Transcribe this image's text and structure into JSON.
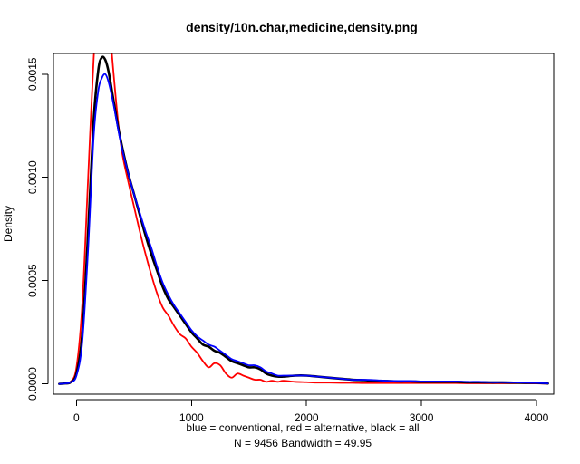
{
  "chart_data": {
    "type": "line",
    "title": "density/10n.char,medicine,density.png",
    "xlabel": "blue = conventional, red = alternative, black = all",
    "ylabel": "Density",
    "sub": "N = 9456   Bandwidth = 49.95",
    "xlim": [
      -200,
      4150
    ],
    "ylim": [
      -5e-05,
      0.0016
    ],
    "x_ticks": [
      0,
      1000,
      2000,
      3000,
      4000
    ],
    "x_tick_labels": [
      "0",
      "1000",
      "2000",
      "3000",
      "4000"
    ],
    "y_ticks": [
      0.0,
      0.0005,
      0.001,
      0.0015
    ],
    "y_tick_labels": [
      "0.0000",
      "0.0005",
      "0.0010",
      "0.0015"
    ],
    "grid": false,
    "legend": "none",
    "series": [
      {
        "color": "#ff0000",
        "x": [
          -150,
          -100,
          -50,
          0,
          50,
          100,
          150,
          190,
          220,
          250,
          280,
          320,
          360,
          400,
          450,
          500,
          550,
          600,
          650,
          700,
          750,
          800,
          850,
          900,
          950,
          1000,
          1050,
          1100,
          1150,
          1200,
          1250,
          1300,
          1350,
          1400,
          1450,
          1500,
          1550,
          1600,
          1650,
          1700,
          1750,
          1800,
          1900,
          2000,
          2100,
          2200,
          2300,
          2400,
          2500,
          2600,
          2700,
          2800,
          2900,
          3000,
          3100,
          3200,
          3300,
          3400,
          3500,
          3600,
          3700,
          3800,
          3900,
          4000,
          4100
        ],
        "y": [
          0.0,
          2e-06,
          1e-05,
          8e-05,
          0.00038,
          0.00098,
          0.00158,
          0.00182,
          0.00195,
          0.00192,
          0.00178,
          0.00152,
          0.00128,
          0.00111,
          0.00098,
          0.00086,
          0.00074,
          0.00063,
          0.00053,
          0.00044,
          0.00037,
          0.00033,
          0.00028,
          0.00024,
          0.00022,
          0.00018,
          0.00015,
          0.00011,
          8e-05,
          0.0001,
          9e-05,
          5e-05,
          3e-05,
          5e-05,
          4e-05,
          3e-05,
          2e-05,
          2e-05,
          1e-05,
          1.5e-05,
          1e-05,
          1.5e-05,
          1e-05,
          8e-06,
          6e-06,
          6e-06,
          5e-06,
          5e-06,
          4e-06,
          4e-06,
          4e-06,
          4e-06,
          4e-06,
          4e-06,
          4e-06,
          4e-06,
          4e-06,
          3e-06,
          3e-06,
          3e-06,
          3e-06,
          3e-06,
          3e-06,
          2e-06,
          1e-06
        ]
      },
      {
        "color": "#000000",
        "x": [
          -150,
          -100,
          -50,
          0,
          50,
          100,
          150,
          190,
          220,
          250,
          280,
          320,
          360,
          400,
          450,
          500,
          550,
          600,
          650,
          700,
          750,
          800,
          850,
          900,
          950,
          1000,
          1050,
          1100,
          1150,
          1200,
          1250,
          1300,
          1350,
          1400,
          1450,
          1500,
          1550,
          1600,
          1650,
          1700,
          1750,
          1800,
          1900,
          2000,
          2100,
          2200,
          2300,
          2400,
          2500,
          2600,
          2700,
          2800,
          2900,
          3000,
          3100,
          3200,
          3300,
          3400,
          3500,
          3600,
          3700,
          3800,
          3900,
          4000,
          4100
        ],
        "y": [
          0.0,
          2e-06,
          8e-06,
          5e-05,
          0.00024,
          0.00072,
          0.00128,
          0.00152,
          0.00158,
          0.00157,
          0.00151,
          0.00138,
          0.00125,
          0.00114,
          0.00102,
          0.00092,
          0.00082,
          0.00072,
          0.00063,
          0.00055,
          0.00047,
          0.00041,
          0.00037,
          0.00033,
          0.00029,
          0.00025,
          0.00022,
          0.00019,
          0.00018,
          0.00016,
          0.00015,
          0.00013,
          0.00011,
          0.0001,
          9e-05,
          8e-05,
          8e-05,
          7e-05,
          5e-05,
          4e-05,
          3.5e-05,
          3.5e-05,
          4e-05,
          4e-05,
          3.5e-05,
          3e-05,
          2.5e-05,
          2e-05,
          1.8e-05,
          1.5e-05,
          1.4e-05,
          1.2e-05,
          1.2e-05,
          1e-05,
          1e-05,
          1e-05,
          1e-05,
          8e-06,
          8e-06,
          7e-06,
          7e-06,
          6e-06,
          5e-06,
          5e-06,
          2e-06
        ]
      },
      {
        "color": "#0000ff",
        "x": [
          -150,
          -100,
          -50,
          0,
          50,
          100,
          150,
          190,
          220,
          250,
          280,
          320,
          360,
          400,
          450,
          500,
          550,
          600,
          650,
          700,
          750,
          800,
          850,
          900,
          950,
          1000,
          1050,
          1100,
          1150,
          1200,
          1250,
          1300,
          1350,
          1400,
          1450,
          1500,
          1550,
          1600,
          1650,
          1700,
          1750,
          1800,
          1900,
          2000,
          2100,
          2200,
          2300,
          2400,
          2500,
          2600,
          2700,
          2800,
          2900,
          3000,
          3100,
          3200,
          3300,
          3400,
          3500,
          3600,
          3700,
          3800,
          3900,
          4000,
          4100
        ],
        "y": [
          0.0,
          2e-06,
          8e-06,
          4e-05,
          0.0002,
          0.00064,
          0.0012,
          0.00142,
          0.00148,
          0.0015,
          0.00146,
          0.00136,
          0.00124,
          0.00113,
          0.00102,
          0.00092,
          0.00083,
          0.00074,
          0.00066,
          0.00057,
          0.00049,
          0.00043,
          0.00038,
          0.00034,
          0.0003,
          0.00026,
          0.00023,
          0.00021,
          0.00019,
          0.00018,
          0.00016,
          0.00014,
          0.00012,
          0.00011,
          0.0001,
          9e-05,
          9e-05,
          8e-05,
          6e-05,
          5e-05,
          4e-05,
          4e-05,
          4e-05,
          4e-05,
          3.5e-05,
          3e-05,
          2.5e-05,
          2e-05,
          2e-05,
          1.8e-05,
          1.5e-05,
          1.4e-05,
          1.4e-05,
          1.2e-05,
          1.2e-05,
          1.2e-05,
          1.2e-05,
          1e-05,
          1e-05,
          8e-06,
          8e-06,
          7e-06,
          6e-06,
          5e-06,
          2e-06
        ]
      }
    ]
  }
}
